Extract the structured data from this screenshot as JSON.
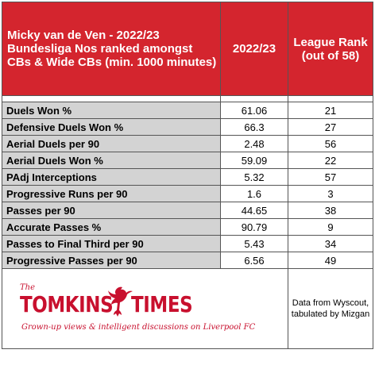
{
  "header": {
    "title": "Micky van de Ven - 2022/23 Bundesliga Nos ranked amongst CBs & Wide CBs (min. 1000 minutes)",
    "col_value": "2022/23",
    "col_rank": "League Rank (out of 58)"
  },
  "rows": [
    {
      "label": "Duels Won %",
      "value": "61.06",
      "rank": "21"
    },
    {
      "label": "Defensive Duels Won %",
      "value": "66.3",
      "rank": "27"
    },
    {
      "label": "Aerial Duels per 90",
      "value": "2.48",
      "rank": "56"
    },
    {
      "label": "Aerial Duels Won %",
      "value": "59.09",
      "rank": "22"
    },
    {
      "label": "PAdj Interceptions",
      "value": "5.32",
      "rank": "57"
    },
    {
      "label": "Progressive Runs per 90",
      "value": "1.6",
      "rank": "3"
    },
    {
      "label": "Passes per 90",
      "value": "44.65",
      "rank": "38"
    },
    {
      "label": "Accurate Passes %",
      "value": "90.79",
      "rank": "9"
    },
    {
      "label": "Passes to Final Third per 90",
      "value": "5.43",
      "rank": "34"
    },
    {
      "label": "Progressive Passes per 90",
      "value": "6.56",
      "rank": "49"
    }
  ],
  "footer": {
    "logo_the": "The",
    "logo_word1": "TOMKINS",
    "logo_word2": "TIMES",
    "logo_tagline": "Grown-up views & intelligent discussions on Liverpool FC",
    "credit": "Data from Wyscout, tabulated by Mizgan"
  },
  "colors": {
    "header_bg": "#d4252e",
    "label_bg": "#d3d3d3",
    "brand": "#c8102e"
  }
}
